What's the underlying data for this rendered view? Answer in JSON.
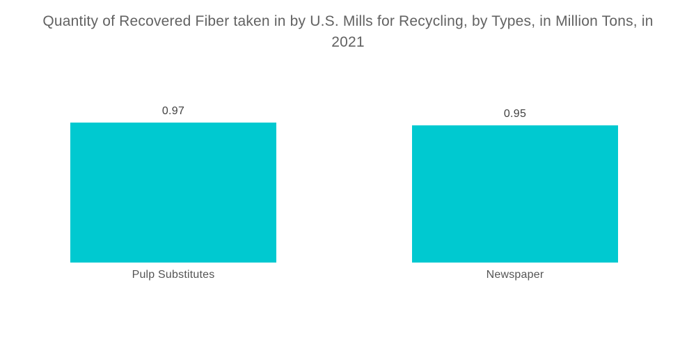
{
  "page": {
    "background_color": "#ffffff"
  },
  "title": {
    "full": "Quantity of Recovered Fiber taken in by U.S. Mills for Recycling, by Types, in Million Tons, in 2021",
    "line1": "Quantity of Recovered Fiber taken in by U.S. Mills for Recycling, by Types, in Million Tons, in",
    "line2": "2021",
    "color": "#626262"
  },
  "chart_data": {
    "type": "bar",
    "title": "Quantity of Recovered Fiber taken in by U.S. Mills for Recycling, by Types, in Million Tons, in 2021",
    "categories": [
      "Pulp Substitutes",
      "Newspaper"
    ],
    "values": [
      0.97,
      0.95
    ],
    "value_labels": [
      "0.97",
      "0.95"
    ],
    "series": [
      {
        "name": "Quantity of Recovered Fiber",
        "values": [
          0.97,
          0.95
        ]
      }
    ],
    "xlabel": "",
    "ylabel": "",
    "unit": "Million Tons",
    "year": "2021",
    "ylim": [
      0,
      1.4
    ],
    "grid": false,
    "legend": false,
    "axes_visible": false,
    "data_label_position": "above-bar",
    "bar_color": "#00C9D0",
    "value_label_color": "#414141",
    "category_label_color": "#545454"
  }
}
